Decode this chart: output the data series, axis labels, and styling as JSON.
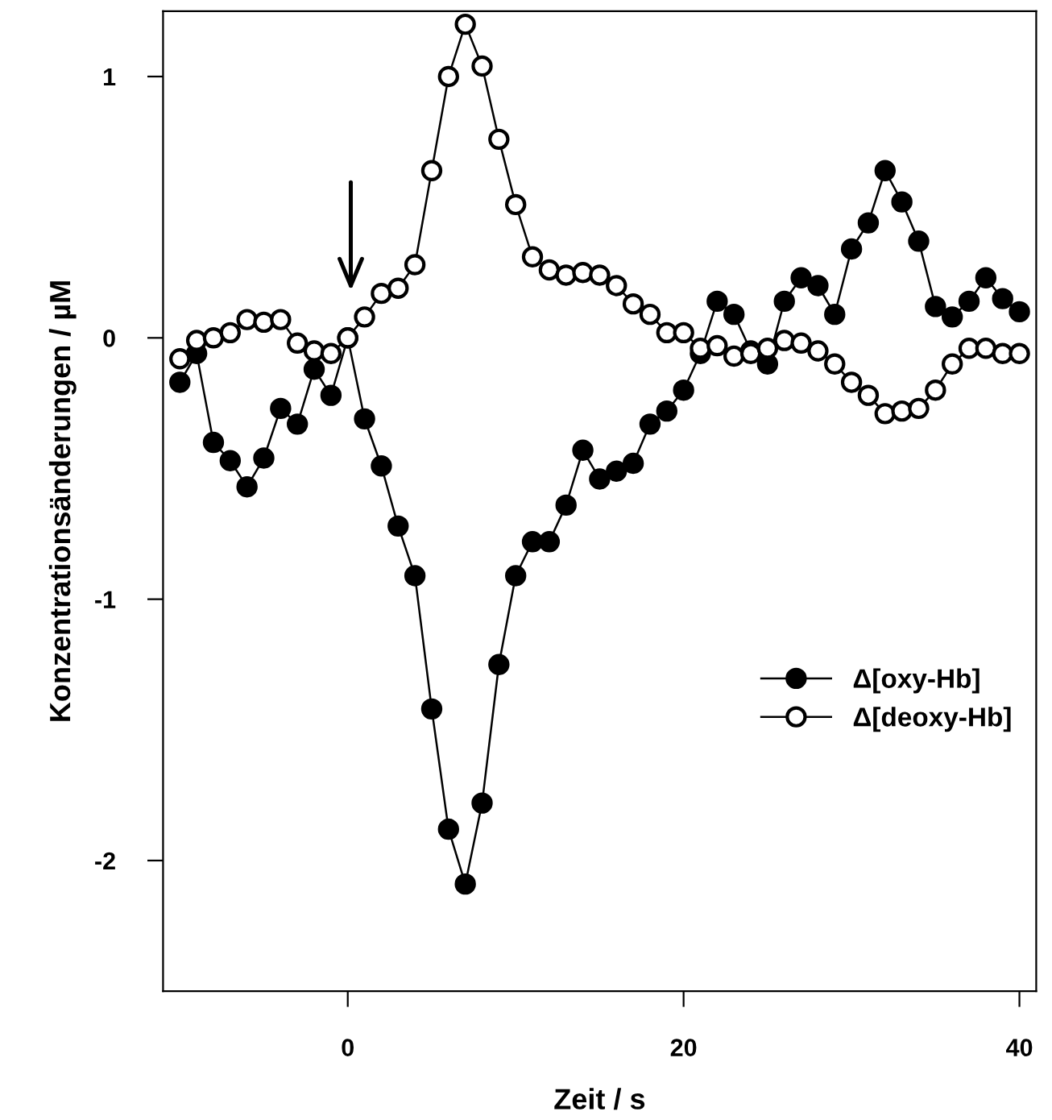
{
  "chart_data": {
    "type": "line",
    "xlabel": "Zeit / s",
    "ylabel": "Konzentrationsänderungen / µM",
    "x": [
      -10,
      -9,
      -8,
      -7,
      -6,
      -5,
      -4,
      -3,
      -2,
      -1,
      0,
      1,
      2,
      3,
      4,
      5,
      6,
      7,
      8,
      9,
      10,
      11,
      12,
      13,
      14,
      15,
      16,
      17,
      18,
      19,
      20,
      21,
      22,
      23,
      24,
      25,
      26,
      27,
      28,
      29,
      30,
      31,
      32,
      33,
      34,
      35,
      36,
      37,
      38,
      39,
      40
    ],
    "series": [
      {
        "name": "Δ[oxy-Hb]",
        "color": "#000000",
        "marker": "circle",
        "values": [
          -0.17,
          -0.06,
          -0.4,
          -0.47,
          -0.57,
          -0.46,
          -0.27,
          -0.33,
          -0.12,
          -0.22,
          0.0,
          -0.31,
          -0.49,
          -0.72,
          -0.91,
          -1.42,
          -1.88,
          -2.09,
          -1.78,
          -1.25,
          -0.91,
          -0.78,
          -0.78,
          -0.64,
          -0.43,
          -0.54,
          -0.51,
          -0.48,
          -0.33,
          -0.28,
          -0.2,
          -0.06,
          0.14,
          0.09,
          -0.05,
          -0.1,
          0.14,
          0.23,
          0.2,
          0.09,
          0.34,
          0.44,
          0.64,
          0.52,
          0.37,
          0.12,
          0.08,
          0.14,
          0.23,
          0.15,
          0.1
        ]
      },
      {
        "name": "Δ[deoxy-Hb]",
        "color": "#ffffff",
        "marker": "circle",
        "values": [
          -0.08,
          -0.01,
          0.0,
          0.02,
          0.07,
          0.06,
          0.07,
          -0.02,
          -0.05,
          -0.06,
          0.0,
          0.08,
          0.17,
          0.19,
          0.28,
          0.64,
          1.0,
          1.2,
          1.04,
          0.76,
          0.51,
          0.31,
          0.26,
          0.24,
          0.25,
          0.24,
          0.2,
          0.13,
          0.09,
          0.02,
          0.02,
          -0.04,
          -0.03,
          -0.07,
          -0.06,
          -0.04,
          -0.01,
          -0.02,
          -0.05,
          -0.1,
          -0.17,
          -0.22,
          -0.29,
          -0.28,
          -0.27,
          -0.2,
          -0.1,
          -0.04,
          -0.04,
          -0.06,
          -0.06
        ]
      }
    ],
    "xlim": [
      -11,
      41
    ],
    "ylim": [
      -2.5,
      1.25
    ],
    "xticks": [
      0,
      20,
      40
    ],
    "yticks": [
      -2,
      -1,
      0,
      1
    ],
    "grid": false,
    "legend": "bottom right",
    "line_style": "solid"
  }
}
